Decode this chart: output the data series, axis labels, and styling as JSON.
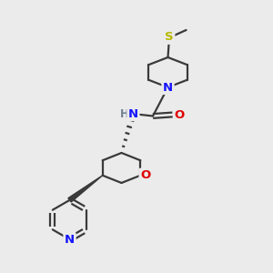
{
  "background_color": "#ebebeb",
  "bond_color": "#3a3a3a",
  "atom_colors": {
    "N": "#1414ff",
    "O": "#e00000",
    "S": "#b8b800",
    "H": "#708090"
  },
  "figsize": [
    3.0,
    3.0
  ],
  "dpi": 100,
  "bond_lw": 1.6,
  "font_size": 9.5
}
